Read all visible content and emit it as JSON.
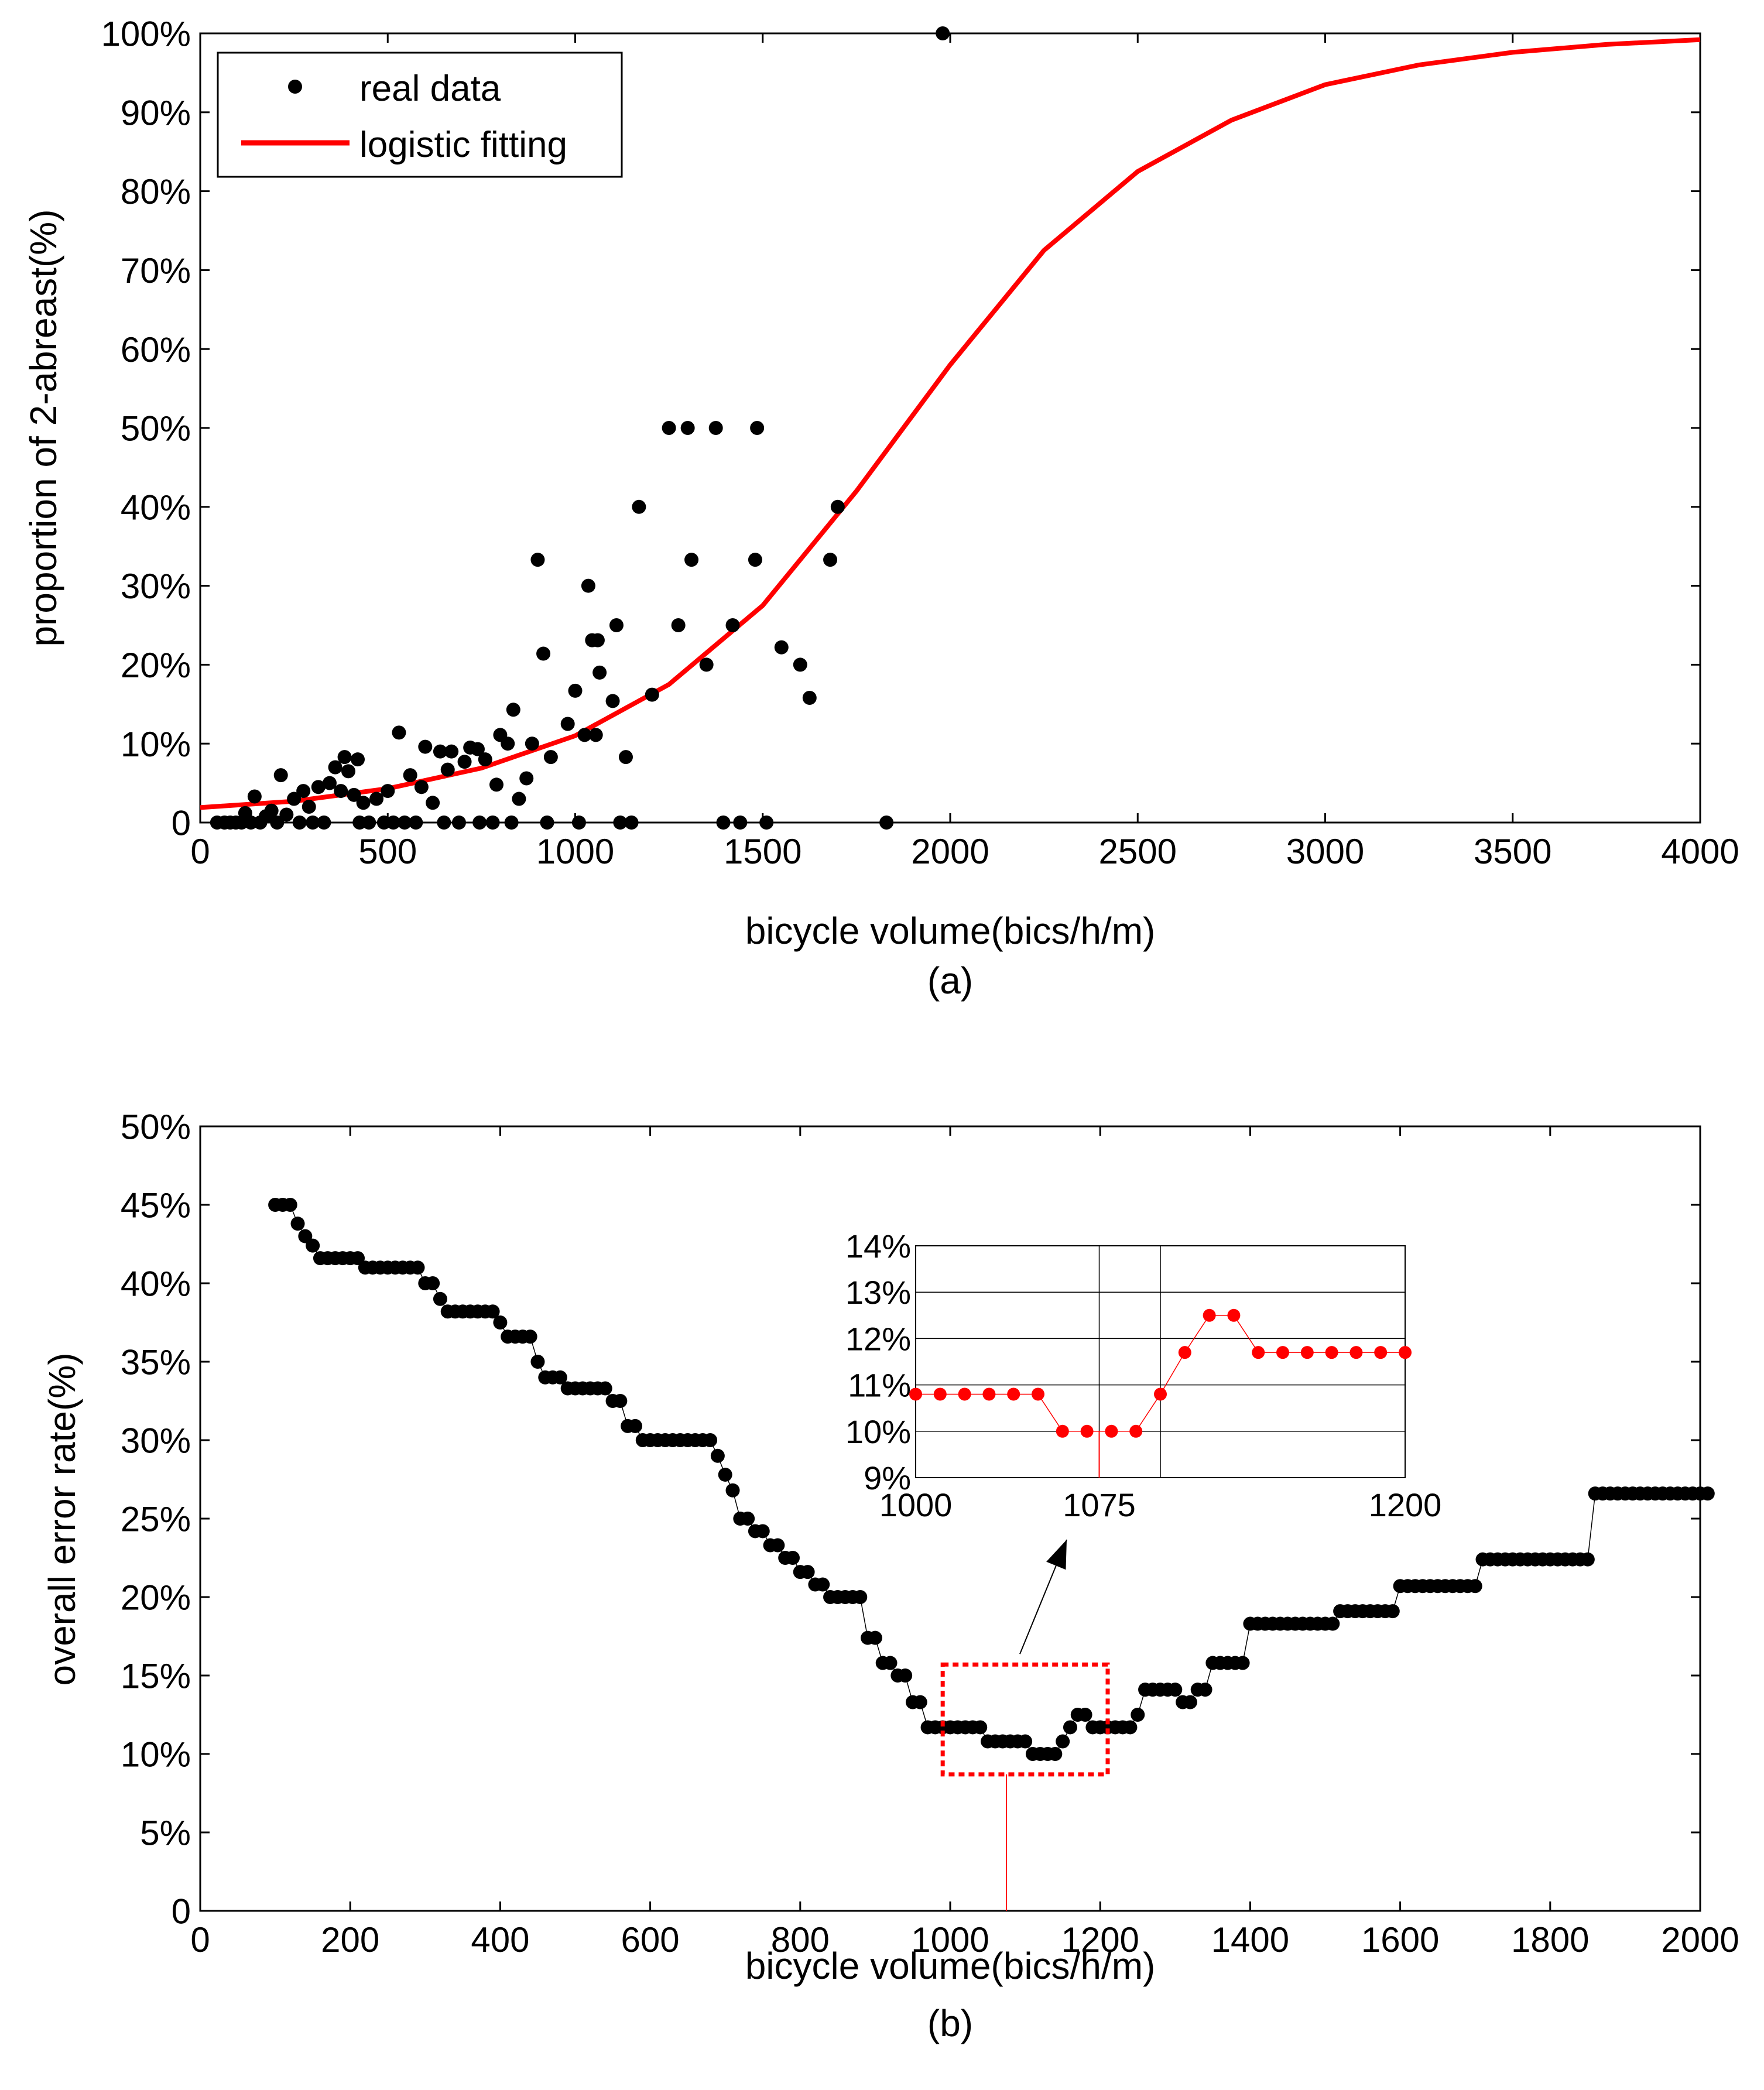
{
  "chart_data": [
    {
      "id": "a",
      "type": "scatter",
      "panel_label": "(a)",
      "xlabel": "bicycle volume(bics/h/m)",
      "ylabel": "proportion of 2-abreast(%)",
      "xlim": [
        0,
        4000
      ],
      "ylim": [
        0,
        100
      ],
      "xticks": [
        "0",
        "500",
        "1000",
        "1500",
        "2000",
        "2500",
        "3000",
        "3500",
        "4000"
      ],
      "yticks": [
        "0",
        "10%",
        "20%",
        "30%",
        "40%",
        "50%",
        "60%",
        "70%",
        "80%",
        "90%",
        "100%"
      ],
      "legend": {
        "position": "top-left",
        "entries": [
          "real data",
          "logistic fitting"
        ]
      },
      "colors": {
        "points": "#000000",
        "fit": "#ff0000"
      },
      "series": [
        {
          "name": "real data",
          "points": [
            [
              45,
              0
            ],
            [
              65,
              0
            ],
            [
              80,
              0
            ],
            [
              95,
              0
            ],
            [
              110,
              0
            ],
            [
              120,
              1.2
            ],
            [
              135,
              0
            ],
            [
              145,
              3.3
            ],
            [
              160,
              0
            ],
            [
              175,
              0.8
            ],
            [
              190,
              1.5
            ],
            [
              205,
              0
            ],
            [
              215,
              6
            ],
            [
              230,
              1
            ],
            [
              250,
              3
            ],
            [
              265,
              0
            ],
            [
              275,
              4
            ],
            [
              290,
              2
            ],
            [
              300,
              0
            ],
            [
              315,
              4.5
            ],
            [
              330,
              0
            ],
            [
              345,
              5
            ],
            [
              360,
              7
            ],
            [
              375,
              4
            ],
            [
              385,
              8.3
            ],
            [
              395,
              6.5
            ],
            [
              410,
              3.5
            ],
            [
              420,
              8
            ],
            [
              425,
              0
            ],
            [
              435,
              2.5
            ],
            [
              450,
              0
            ],
            [
              470,
              3
            ],
            [
              490,
              0
            ],
            [
              500,
              4
            ],
            [
              515,
              0
            ],
            [
              530,
              11.4
            ],
            [
              545,
              0
            ],
            [
              560,
              6
            ],
            [
              575,
              0
            ],
            [
              590,
              4.5
            ],
            [
              600,
              9.6
            ],
            [
              620,
              2.5
            ],
            [
              640,
              9
            ],
            [
              650,
              0
            ],
            [
              660,
              6.7
            ],
            [
              670,
              9
            ],
            [
              690,
              0
            ],
            [
              705,
              7.7
            ],
            [
              720,
              9.5
            ],
            [
              740,
              9.3
            ],
            [
              745,
              0
            ],
            [
              760,
              8
            ],
            [
              780,
              0
            ],
            [
              790,
              4.8
            ],
            [
              800,
              11.1
            ],
            [
              820,
              10
            ],
            [
              830,
              0
            ],
            [
              835,
              14.3
            ],
            [
              850,
              3
            ],
            [
              870,
              5.6
            ],
            [
              885,
              10
            ],
            [
              900,
              33.3
            ],
            [
              915,
              21.4
            ],
            [
              925,
              0
            ],
            [
              935,
              8.3
            ],
            [
              980,
              12.5
            ],
            [
              1000,
              16.7
            ],
            [
              1010,
              0
            ],
            [
              1025,
              11.1
            ],
            [
              1035,
              30
            ],
            [
              1045,
              23.1
            ],
            [
              1055,
              11.1
            ],
            [
              1060,
              23.1
            ],
            [
              1065,
              19
            ],
            [
              1100,
              15.4
            ],
            [
              1110,
              25
            ],
            [
              1120,
              0
            ],
            [
              1135,
              8.3
            ],
            [
              1150,
              0
            ],
            [
              1170,
              40
            ],
            [
              1205,
              16.2
            ],
            [
              1250,
              50
            ],
            [
              1275,
              25
            ],
            [
              1300,
              50
            ],
            [
              1310,
              33.3
            ],
            [
              1350,
              20
            ],
            [
              1375,
              50
            ],
            [
              1395,
              0
            ],
            [
              1420,
              25
            ],
            [
              1440,
              0
            ],
            [
              1480,
              33.3
            ],
            [
              1485,
              50
            ],
            [
              1510,
              0
            ],
            [
              1550,
              22.2
            ],
            [
              1600,
              20
            ],
            [
              1625,
              15.8
            ],
            [
              1680,
              33.3
            ],
            [
              1700,
              40
            ],
            [
              1830,
              0
            ],
            [
              1980,
              100
            ]
          ]
        },
        {
          "name": "logistic fitting",
          "model": "logistic",
          "points": [
            [
              0,
              1.9
            ],
            [
              250,
              2.7
            ],
            [
              500,
              4.3
            ],
            [
              750,
              6.9
            ],
            [
              1000,
              11
            ],
            [
              1250,
              17.5
            ],
            [
              1500,
              27.5
            ],
            [
              1750,
              42
            ],
            [
              2000,
              58
            ],
            [
              2250,
              72.5
            ],
            [
              2500,
              82.5
            ],
            [
              2750,
              89
            ],
            [
              3000,
              93.5
            ],
            [
              3250,
              96
            ],
            [
              3500,
              97.6
            ],
            [
              3750,
              98.6
            ],
            [
              4000,
              99.2
            ]
          ]
        }
      ]
    },
    {
      "id": "b",
      "type": "scatter",
      "panel_label": "(b)",
      "xlabel": "bicycle volume(bics/h/m)",
      "ylabel": "overall error rate(%)",
      "xlim": [
        0,
        2000
      ],
      "ylim": [
        0,
        50
      ],
      "xticks": [
        "0",
        "200",
        "400",
        "600",
        "800",
        "1000",
        "1200",
        "1400",
        "1600",
        "1800",
        "2000"
      ],
      "yticks": [
        "0",
        "5%",
        "10%",
        "15%",
        "20%",
        "25%",
        "30%",
        "35%",
        "40%",
        "45%",
        "50%"
      ],
      "colors": {
        "points": "#000000",
        "highlight": "#ff0000"
      },
      "highlight": {
        "x_range": [
          990,
          1210
        ],
        "y_range": [
          8.7,
          15.7
        ],
        "marker_x": 1075
      },
      "steps": [
        [
          100,
          120,
          45
        ],
        [
          130,
          130,
          43.8
        ],
        [
          140,
          140,
          43
        ],
        [
          150,
          150,
          42.4
        ],
        [
          160,
          210,
          41.6
        ],
        [
          220,
          290,
          41
        ],
        [
          300,
          310,
          40
        ],
        [
          320,
          320,
          39
        ],
        [
          330,
          390,
          38.2
        ],
        [
          400,
          400,
          37.5
        ],
        [
          410,
          440,
          36.6
        ],
        [
          450,
          450,
          35
        ],
        [
          460,
          480,
          34
        ],
        [
          490,
          540,
          33.3
        ],
        [
          550,
          560,
          32.5
        ],
        [
          570,
          580,
          30.9
        ],
        [
          590,
          680,
          30
        ],
        [
          690,
          690,
          29
        ],
        [
          700,
          700,
          27.8
        ],
        [
          710,
          710,
          26.8
        ],
        [
          720,
          730,
          25
        ],
        [
          740,
          750,
          24.2
        ],
        [
          760,
          770,
          23.3
        ],
        [
          780,
          790,
          22.5
        ],
        [
          800,
          810,
          21.6
        ],
        [
          820,
          830,
          20.8
        ],
        [
          840,
          880,
          20
        ],
        [
          890,
          900,
          17.4
        ],
        [
          910,
          920,
          15.8
        ],
        [
          930,
          940,
          15
        ],
        [
          950,
          960,
          13.3
        ],
        [
          970,
          1040,
          11.7
        ],
        [
          1050,
          1100,
          10.8
        ],
        [
          1110,
          1140,
          10
        ],
        [
          1150,
          1150,
          10.8
        ],
        [
          1160,
          1160,
          11.7
        ],
        [
          1170,
          1180,
          12.5
        ],
        [
          1190,
          1240,
          11.7
        ],
        [
          1250,
          1250,
          12.5
        ],
        [
          1260,
          1300,
          14.1
        ],
        [
          1310,
          1320,
          13.3
        ],
        [
          1330,
          1340,
          14.1
        ],
        [
          1350,
          1390,
          15.8
        ],
        [
          1400,
          1510,
          18.3
        ],
        [
          1520,
          1590,
          19.1
        ],
        [
          1600,
          1700,
          20.7
        ],
        [
          1710,
          1850,
          22.4
        ],
        [
          1860,
          2010,
          26.6
        ]
      ],
      "inset": {
        "xlim": [
          1000,
          1200
        ],
        "ylim": [
          9,
          14
        ],
        "xticks": [
          "1000",
          "1075",
          "1200"
        ],
        "yticks": [
          "9%",
          "10%",
          "11%",
          "12%",
          "13%",
          "14%"
        ],
        "points": [
          [
            1000,
            10.8
          ],
          [
            1010,
            10.8
          ],
          [
            1020,
            10.8
          ],
          [
            1030,
            10.8
          ],
          [
            1040,
            10.8
          ],
          [
            1050,
            10.8
          ],
          [
            1060,
            10
          ],
          [
            1070,
            10
          ],
          [
            1080,
            10
          ],
          [
            1090,
            10
          ],
          [
            1100,
            10.8
          ],
          [
            1110,
            11.7
          ],
          [
            1120,
            12.5
          ],
          [
            1130,
            12.5
          ],
          [
            1140,
            11.7
          ],
          [
            1150,
            11.7
          ],
          [
            1160,
            11.7
          ],
          [
            1170,
            11.7
          ],
          [
            1180,
            11.7
          ],
          [
            1190,
            11.7
          ],
          [
            1200,
            11.7
          ]
        ]
      }
    }
  ]
}
